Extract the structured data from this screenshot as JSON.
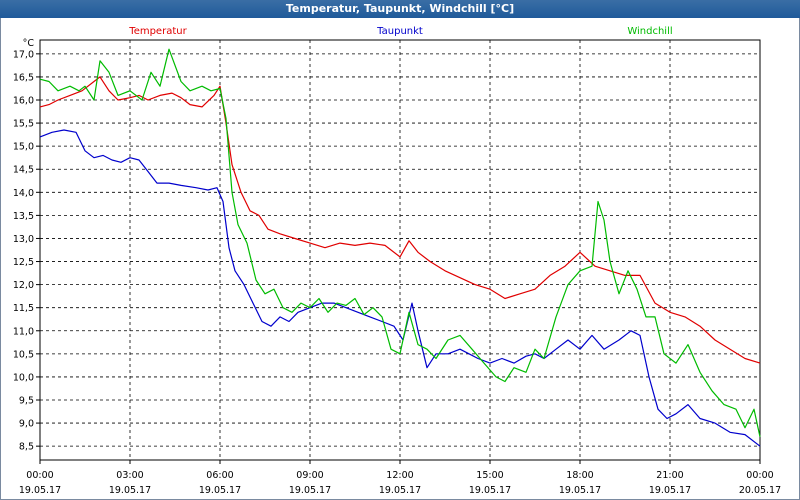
{
  "window": {
    "title": "Temperatur, Taupunkt, Windchill [°C]"
  },
  "chart_data": {
    "type": "line",
    "title": "Temperatur, Taupunkt, Windchill [°C]",
    "ylabel": "°C",
    "xlabel": "",
    "ylim": [
      8.2,
      17.3
    ],
    "xlim_hours": [
      0,
      24
    ],
    "y_ticks": [
      "8,5",
      "9,0",
      "9,5",
      "10,0",
      "10,5",
      "11,0",
      "11,5",
      "12,0",
      "12,5",
      "13,0",
      "13,5",
      "14,0",
      "14,5",
      "15,0",
      "15,5",
      "16,0",
      "16,5",
      "17,0"
    ],
    "y_tick_values": [
      8.5,
      9.0,
      9.5,
      10.0,
      10.5,
      11.0,
      11.5,
      12.0,
      12.5,
      13.0,
      13.5,
      14.0,
      14.5,
      15.0,
      15.5,
      16.0,
      16.5,
      17.0
    ],
    "x_ticks": [
      {
        "time": "00:00",
        "date": "19.05.17"
      },
      {
        "time": "03:00",
        "date": "19.05.17"
      },
      {
        "time": "06:00",
        "date": "19.05.17"
      },
      {
        "time": "09:00",
        "date": "19.05.17"
      },
      {
        "time": "12:00",
        "date": "19.05.17"
      },
      {
        "time": "15:00",
        "date": "19.05.17"
      },
      {
        "time": "18:00",
        "date": "19.05.17"
      },
      {
        "time": "21:00",
        "date": "19.05.17"
      },
      {
        "time": "00:00",
        "date": "20.05.17"
      }
    ],
    "grid": true,
    "legend_position": "top",
    "series": [
      {
        "name": "Temperatur",
        "color": "#e00000",
        "points": [
          [
            0,
            15.85
          ],
          [
            0.3,
            15.9
          ],
          [
            0.6,
            16.0
          ],
          [
            1.0,
            16.1
          ],
          [
            1.4,
            16.2
          ],
          [
            1.8,
            16.4
          ],
          [
            2.0,
            16.5
          ],
          [
            2.3,
            16.2
          ],
          [
            2.6,
            16.0
          ],
          [
            3.0,
            16.05
          ],
          [
            3.3,
            16.1
          ],
          [
            3.6,
            16.0
          ],
          [
            4.0,
            16.1
          ],
          [
            4.4,
            16.15
          ],
          [
            4.7,
            16.05
          ],
          [
            5.0,
            15.9
          ],
          [
            5.4,
            15.85
          ],
          [
            5.8,
            16.1
          ],
          [
            6.0,
            16.3
          ],
          [
            6.2,
            15.5
          ],
          [
            6.4,
            14.6
          ],
          [
            6.7,
            14.0
          ],
          [
            7.0,
            13.6
          ],
          [
            7.3,
            13.5
          ],
          [
            7.6,
            13.2
          ],
          [
            8.0,
            13.1
          ],
          [
            8.5,
            13.0
          ],
          [
            9.0,
            12.9
          ],
          [
            9.5,
            12.8
          ],
          [
            10.0,
            12.9
          ],
          [
            10.5,
            12.85
          ],
          [
            11.0,
            12.9
          ],
          [
            11.5,
            12.85
          ],
          [
            12.0,
            12.6
          ],
          [
            12.3,
            12.95
          ],
          [
            12.6,
            12.7
          ],
          [
            13.0,
            12.5
          ],
          [
            13.5,
            12.3
          ],
          [
            14.0,
            12.15
          ],
          [
            14.5,
            12.0
          ],
          [
            15.0,
            11.9
          ],
          [
            15.5,
            11.7
          ],
          [
            16.0,
            11.8
          ],
          [
            16.5,
            11.9
          ],
          [
            17.0,
            12.2
          ],
          [
            17.5,
            12.4
          ],
          [
            18.0,
            12.7
          ],
          [
            18.5,
            12.4
          ],
          [
            19.0,
            12.3
          ],
          [
            19.5,
            12.2
          ],
          [
            20.0,
            12.2
          ],
          [
            20.5,
            11.6
          ],
          [
            21.0,
            11.4
          ],
          [
            21.5,
            11.3
          ],
          [
            22.0,
            11.1
          ],
          [
            22.5,
            10.8
          ],
          [
            23.0,
            10.6
          ],
          [
            23.5,
            10.4
          ],
          [
            24.0,
            10.3
          ]
        ]
      },
      {
        "name": "Taupunkt",
        "color": "#0000cc",
        "points": [
          [
            0,
            15.2
          ],
          [
            0.4,
            15.3
          ],
          [
            0.8,
            15.35
          ],
          [
            1.2,
            15.3
          ],
          [
            1.5,
            14.9
          ],
          [
            1.8,
            14.75
          ],
          [
            2.1,
            14.8
          ],
          [
            2.4,
            14.7
          ],
          [
            2.7,
            14.65
          ],
          [
            3.0,
            14.75
          ],
          [
            3.3,
            14.7
          ],
          [
            3.6,
            14.45
          ],
          [
            3.9,
            14.2
          ],
          [
            4.3,
            14.2
          ],
          [
            4.7,
            14.15
          ],
          [
            5.2,
            14.1
          ],
          [
            5.6,
            14.05
          ],
          [
            5.9,
            14.1
          ],
          [
            6.1,
            13.8
          ],
          [
            6.3,
            12.8
          ],
          [
            6.5,
            12.3
          ],
          [
            6.8,
            12.0
          ],
          [
            7.1,
            11.6
          ],
          [
            7.4,
            11.2
          ],
          [
            7.7,
            11.1
          ],
          [
            8.0,
            11.3
          ],
          [
            8.3,
            11.2
          ],
          [
            8.6,
            11.4
          ],
          [
            9.0,
            11.5
          ],
          [
            9.4,
            11.6
          ],
          [
            9.8,
            11.6
          ],
          [
            10.2,
            11.5
          ],
          [
            10.6,
            11.4
          ],
          [
            11.0,
            11.3
          ],
          [
            11.4,
            11.2
          ],
          [
            11.8,
            11.1
          ],
          [
            12.1,
            10.8
          ],
          [
            12.4,
            11.6
          ],
          [
            12.6,
            11.0
          ],
          [
            12.9,
            10.2
          ],
          [
            13.2,
            10.5
          ],
          [
            13.6,
            10.5
          ],
          [
            14.0,
            10.6
          ],
          [
            14.3,
            10.5
          ],
          [
            14.6,
            10.4
          ],
          [
            15.0,
            10.3
          ],
          [
            15.4,
            10.4
          ],
          [
            15.8,
            10.3
          ],
          [
            16.2,
            10.45
          ],
          [
            16.5,
            10.5
          ],
          [
            16.8,
            10.4
          ],
          [
            17.2,
            10.6
          ],
          [
            17.6,
            10.8
          ],
          [
            18.0,
            10.6
          ],
          [
            18.4,
            10.9
          ],
          [
            18.8,
            10.6
          ],
          [
            19.3,
            10.8
          ],
          [
            19.7,
            11.0
          ],
          [
            20.0,
            10.9
          ],
          [
            20.3,
            10.0
          ],
          [
            20.6,
            9.3
          ],
          [
            20.9,
            9.1
          ],
          [
            21.2,
            9.2
          ],
          [
            21.6,
            9.4
          ],
          [
            22.0,
            9.1
          ],
          [
            22.5,
            9.0
          ],
          [
            23.0,
            8.8
          ],
          [
            23.5,
            8.75
          ],
          [
            24.0,
            8.5
          ]
        ]
      },
      {
        "name": "Windchill",
        "color": "#00bb00",
        "points": [
          [
            0,
            16.45
          ],
          [
            0.3,
            16.4
          ],
          [
            0.6,
            16.2
          ],
          [
            1.0,
            16.3
          ],
          [
            1.3,
            16.2
          ],
          [
            1.5,
            16.3
          ],
          [
            1.8,
            16.0
          ],
          [
            2.0,
            16.85
          ],
          [
            2.3,
            16.6
          ],
          [
            2.6,
            16.1
          ],
          [
            3.0,
            16.2
          ],
          [
            3.4,
            16.0
          ],
          [
            3.7,
            16.6
          ],
          [
            4.0,
            16.3
          ],
          [
            4.3,
            17.1
          ],
          [
            4.7,
            16.4
          ],
          [
            5.0,
            16.2
          ],
          [
            5.4,
            16.3
          ],
          [
            5.7,
            16.2
          ],
          [
            6.0,
            16.25
          ],
          [
            6.2,
            15.6
          ],
          [
            6.4,
            14.0
          ],
          [
            6.6,
            13.3
          ],
          [
            6.9,
            12.9
          ],
          [
            7.2,
            12.1
          ],
          [
            7.5,
            11.8
          ],
          [
            7.8,
            11.9
          ],
          [
            8.1,
            11.5
          ],
          [
            8.4,
            11.4
          ],
          [
            8.7,
            11.6
          ],
          [
            9.0,
            11.5
          ],
          [
            9.3,
            11.7
          ],
          [
            9.6,
            11.4
          ],
          [
            9.9,
            11.6
          ],
          [
            10.2,
            11.55
          ],
          [
            10.5,
            11.7
          ],
          [
            10.8,
            11.35
          ],
          [
            11.1,
            11.5
          ],
          [
            11.4,
            11.3
          ],
          [
            11.7,
            10.6
          ],
          [
            12.0,
            10.5
          ],
          [
            12.3,
            11.4
          ],
          [
            12.6,
            10.7
          ],
          [
            12.9,
            10.6
          ],
          [
            13.2,
            10.4
          ],
          [
            13.6,
            10.8
          ],
          [
            14.0,
            10.9
          ],
          [
            14.4,
            10.6
          ],
          [
            14.8,
            10.3
          ],
          [
            15.2,
            10.0
          ],
          [
            15.5,
            9.9
          ],
          [
            15.8,
            10.2
          ],
          [
            16.2,
            10.1
          ],
          [
            16.5,
            10.6
          ],
          [
            16.8,
            10.4
          ],
          [
            17.2,
            11.3
          ],
          [
            17.6,
            12.0
          ],
          [
            18.0,
            12.3
          ],
          [
            18.4,
            12.4
          ],
          [
            18.6,
            13.8
          ],
          [
            18.8,
            13.4
          ],
          [
            19.0,
            12.5
          ],
          [
            19.3,
            11.8
          ],
          [
            19.6,
            12.3
          ],
          [
            19.9,
            11.9
          ],
          [
            20.2,
            11.3
          ],
          [
            20.5,
            11.3
          ],
          [
            20.8,
            10.5
          ],
          [
            21.2,
            10.3
          ],
          [
            21.6,
            10.7
          ],
          [
            22.0,
            10.1
          ],
          [
            22.4,
            9.7
          ],
          [
            22.8,
            9.4
          ],
          [
            23.2,
            9.3
          ],
          [
            23.5,
            8.9
          ],
          [
            23.8,
            9.3
          ],
          [
            24.0,
            8.7
          ]
        ]
      }
    ]
  }
}
